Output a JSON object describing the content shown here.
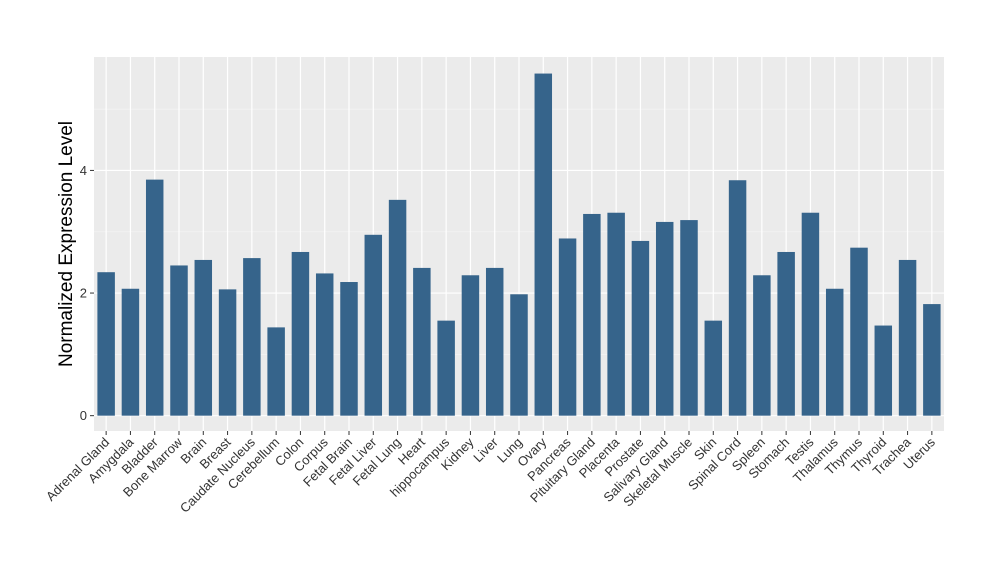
{
  "chart_data": {
    "type": "bar",
    "title": "",
    "xlabel": "",
    "ylabel": "Normalized Expression Level",
    "ylim": [
      -0.25,
      5.85
    ],
    "yticks": [
      0,
      2,
      4
    ],
    "grid": true,
    "legend": "none",
    "colors": {
      "bar": "#36648b",
      "panel": "#ebebeb",
      "grid_major": "#ffffff",
      "grid_minor": "#f4f4f4",
      "tick": "#333333"
    },
    "categories": [
      "Adrenal Gland",
      "Amygdala",
      "Bladder",
      "Bone Marrow",
      "Brain",
      "Breast",
      "Caudate Nucleus",
      "Cerebellum",
      "Colon",
      "Corpus",
      "Fetal Brain",
      "Fetal Liver",
      "Fetal Lung",
      "Heart",
      "hippocampus",
      "Kidney",
      "Liver",
      "Lung",
      "Ovary",
      "Pancreas",
      "Pituitary Gland",
      "Placenta",
      "Prostate",
      "Salivary Gland",
      "Skeletal Muscle",
      "Skin",
      "Spinal Cord",
      "Spleen",
      "Stomach",
      "Testis",
      "Thalamus",
      "Thymus",
      "Thyroid",
      "Trachea",
      "Uterus"
    ],
    "values": [
      2.34,
      2.07,
      3.85,
      2.45,
      2.54,
      2.06,
      2.57,
      1.44,
      2.67,
      2.32,
      2.18,
      2.95,
      3.52,
      2.41,
      1.55,
      2.29,
      2.41,
      1.98,
      5.58,
      2.89,
      3.29,
      3.31,
      2.85,
      3.16,
      3.19,
      1.55,
      3.84,
      2.29,
      2.67,
      3.31,
      2.07,
      2.74,
      1.47,
      2.54,
      1.82
    ]
  }
}
